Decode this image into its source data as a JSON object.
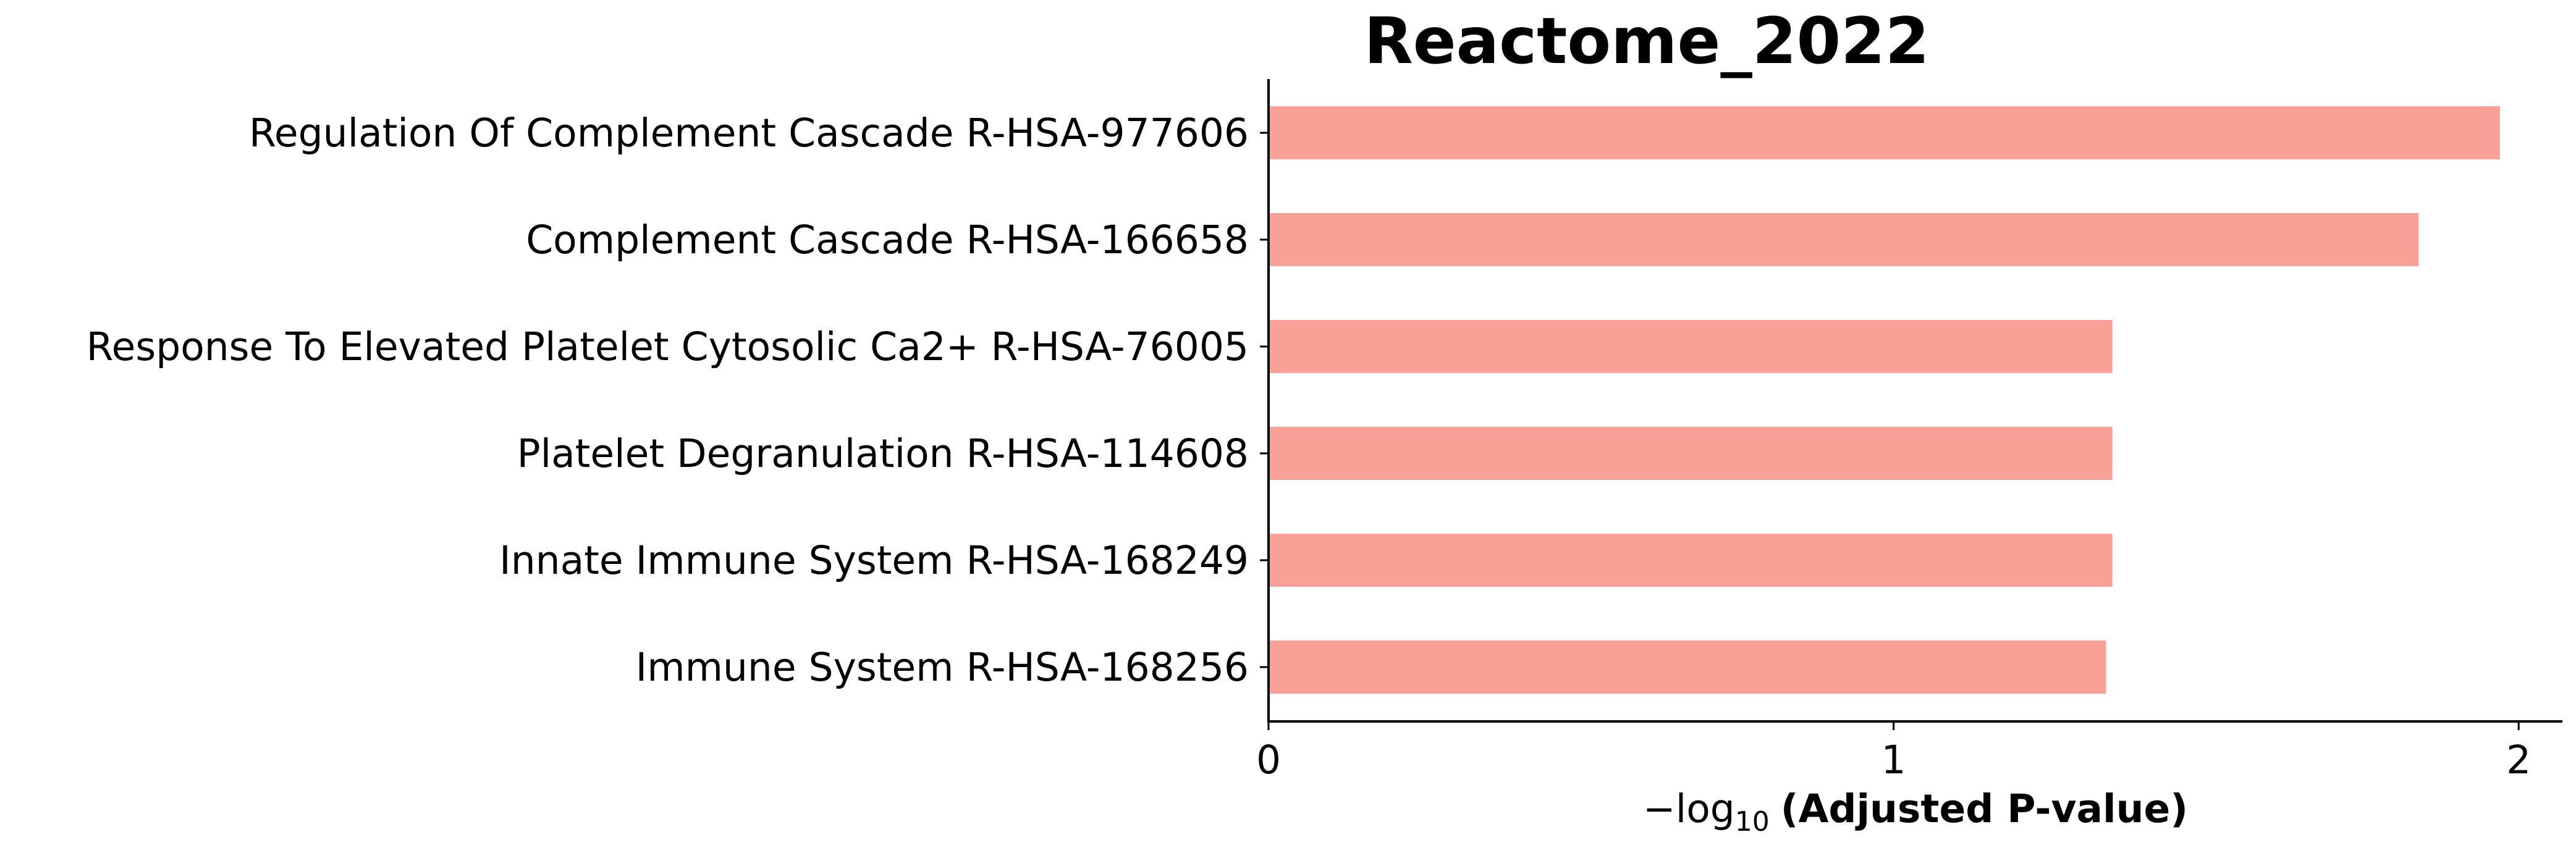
{
  "chart_data": {
    "type": "bar",
    "orientation": "horizontal",
    "title": "Reactome_2022",
    "xlabel_prefix": "−log",
    "xlabel_subscript": "10",
    "xlabel_main": "(Adjusted P-value)",
    "categories": [
      "Regulation Of Complement Cascade R-HSA-977606",
      "Complement Cascade R-HSA-166658",
      "Response To Elevated Platelet Cytosolic Ca2+ R-HSA-76005",
      "Platelet Degranulation R-HSA-114608",
      "Innate Immune System R-HSA-168249",
      "Immune System R-HSA-168256"
    ],
    "values": [
      1.97,
      1.84,
      1.35,
      1.35,
      1.35,
      1.34
    ],
    "xlim": [
      0,
      2.07
    ],
    "xticks": [
      {
        "value": 0,
        "label": "0"
      },
      {
        "value": 1,
        "label": "1"
      },
      {
        "value": 2,
        "label": "2"
      }
    ],
    "grid": false,
    "bar_color": "#f9a196"
  }
}
